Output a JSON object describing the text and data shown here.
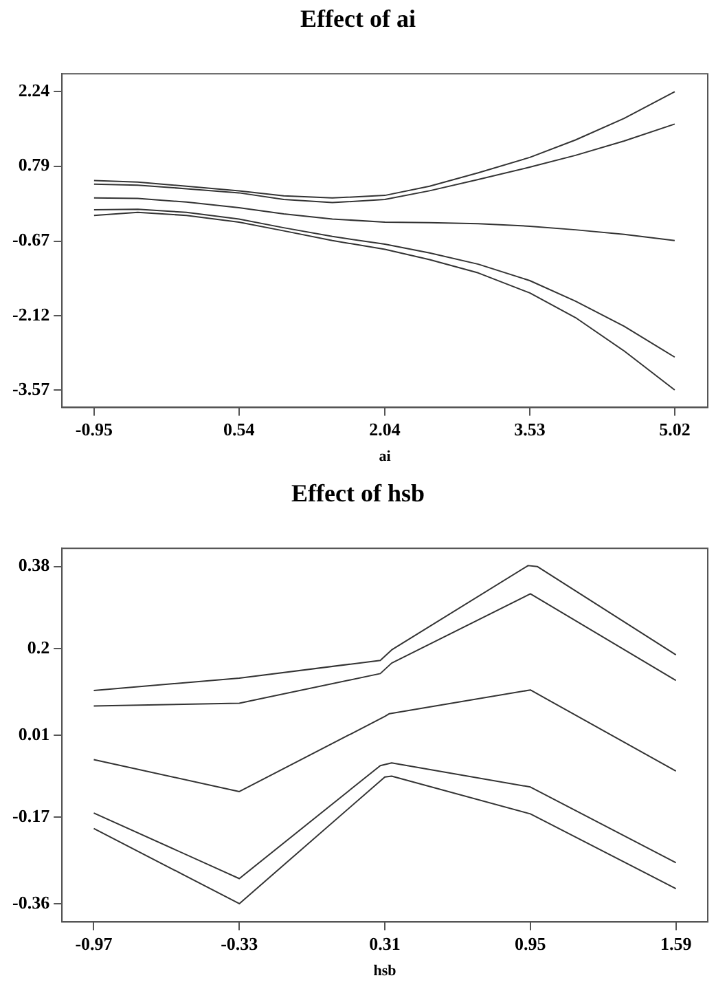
{
  "chart_data": [
    {
      "type": "line",
      "title": "Effect of ai",
      "xlabel": "ai",
      "x": [
        -0.95,
        -0.5,
        0,
        0.54,
        1.0,
        1.5,
        2.04,
        2.5,
        3.0,
        3.53,
        4.0,
        4.5,
        5.02
      ],
      "xlim": [
        -1.28,
        5.36
      ],
      "ylim": [
        -3.91,
        2.59
      ],
      "xticks": [
        -0.95,
        0.54,
        2.04,
        3.53,
        5.02
      ],
      "yticks": [
        -3.57,
        -2.12,
        -0.67,
        0.79,
        2.24
      ],
      "grid": false,
      "legend": false,
      "marker": "none",
      "line_style": "solid",
      "series": [
        {
          "color": "#333333",
          "values": [
            0.51,
            0.48,
            0.4,
            0.31,
            0.21,
            0.17,
            0.22,
            0.4,
            0.66,
            0.96,
            1.3,
            1.72,
            2.24
          ]
        },
        {
          "color": "#333333",
          "values": [
            0.44,
            0.42,
            0.35,
            0.27,
            0.14,
            0.08,
            0.14,
            0.31,
            0.53,
            0.77,
            1.0,
            1.28,
            1.61
          ]
        },
        {
          "color": "#333333",
          "values": [
            0.17,
            0.16,
            0.09,
            -0.02,
            -0.14,
            -0.24,
            -0.3,
            -0.31,
            -0.33,
            -0.38,
            -0.45,
            -0.54,
            -0.66
          ]
        },
        {
          "color": "#333333",
          "values": [
            -0.06,
            -0.05,
            -0.11,
            -0.24,
            -0.41,
            -0.58,
            -0.73,
            -0.9,
            -1.12,
            -1.44,
            -1.84,
            -2.33,
            -2.93
          ]
        },
        {
          "color": "#333333",
          "values": [
            -0.17,
            -0.11,
            -0.17,
            -0.3,
            -0.47,
            -0.66,
            -0.83,
            -1.03,
            -1.29,
            -1.68,
            -2.16,
            -2.81,
            -3.57
          ]
        }
      ]
    },
    {
      "type": "line",
      "title": "Effect of hsb",
      "xlabel": "hsb",
      "xlim": [
        -1.11,
        1.73
      ],
      "ylim": [
        -0.4,
        0.42
      ],
      "xticks": [
        -0.97,
        -0.33,
        0.31,
        0.95,
        1.59
      ],
      "yticks": [
        -0.36,
        -0.17,
        0.01,
        0.2,
        0.38
      ],
      "grid": false,
      "legend": false,
      "marker": "none",
      "line_style": "solid",
      "series": [
        {
          "color": "#333333",
          "x": [
            -0.97,
            -0.33,
            0.29,
            0.34,
            0.94,
            0.98,
            1.59
          ],
          "values": [
            0.108,
            0.135,
            0.174,
            0.197,
            0.382,
            0.38,
            0.186
          ]
        },
        {
          "color": "#333333",
          "x": [
            -0.97,
            -0.33,
            0.29,
            0.34,
            0.95,
            1.59
          ],
          "values": [
            0.074,
            0.08,
            0.145,
            0.168,
            0.32,
            0.13
          ]
        },
        {
          "color": "#333333",
          "x": [
            -0.97,
            -0.33,
            0.31,
            0.33,
            0.95,
            1.59
          ],
          "values": [
            -0.044,
            -0.114,
            0.051,
            0.057,
            0.109,
            -0.069
          ]
        },
        {
          "color": "#333333",
          "x": [
            -0.97,
            -0.33,
            0.29,
            0.34,
            0.95,
            1.59
          ],
          "values": [
            -0.161,
            -0.305,
            -0.057,
            -0.051,
            -0.104,
            -0.27
          ]
        },
        {
          "color": "#333333",
          "x": [
            -0.97,
            -0.33,
            0.31,
            0.34,
            0.95,
            1.59
          ],
          "values": [
            -0.195,
            -0.36,
            -0.082,
            -0.08,
            -0.163,
            -0.327
          ]
        }
      ]
    }
  ]
}
